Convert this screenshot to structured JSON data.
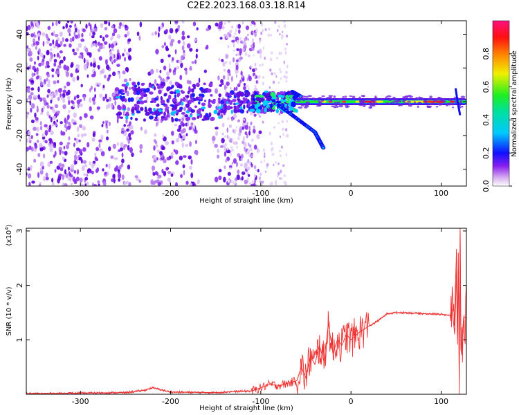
{
  "title": "C2E2.2023.168.03.18.R14",
  "colors": {
    "signal": "#ee3333",
    "frame": "#000000"
  },
  "chart_data": [
    {
      "type": "heatmap",
      "xlabel": "Height of straight line (km)",
      "ylabel": "Frequency (Hz)",
      "xlim": [
        -360,
        128
      ],
      "ylim": [
        -50,
        48
      ],
      "xticks": [
        -300,
        -200,
        -100,
        0,
        100
      ],
      "yticks": [
        -40,
        -20,
        0,
        20,
        40
      ],
      "colorbar": {
        "label": "Normalized spectral amplitude",
        "range": [
          0,
          1
        ],
        "ticks": [
          0.0,
          0.2,
          0.4,
          0.6,
          0.8
        ]
      },
      "features": {
        "noise_band_x": [
          -360,
          -120
        ],
        "central_trace_freq": 0,
        "lower_branch": [
          [
            -80,
            -2
          ],
          [
            -60,
            -10
          ],
          [
            -40,
            -18
          ],
          [
            -30,
            -28
          ]
        ],
        "upper_branch": [
          [
            -65,
            6
          ],
          [
            -55,
            3
          ]
        ]
      }
    },
    {
      "type": "line",
      "xlabel": "Height of straight line (km)",
      "ylabel": "SNR (10 * v/v)",
      "yexponent": "(x10",
      "yexponent_power": "4",
      "yexponent_close": ")",
      "xlim": [
        -360,
        128
      ],
      "ylim": [
        0,
        3.05
      ],
      "xticks": [
        -300,
        -200,
        -100,
        0,
        100
      ],
      "yticks": [
        1,
        2,
        3
      ],
      "series": [
        {
          "color": "#ee3333",
          "x": [
            -360,
            -300,
            -250,
            -230,
            -220,
            -210,
            -200,
            -150,
            -130,
            -110,
            -100,
            -90,
            -80,
            -70,
            -60,
            -55,
            -50,
            -45,
            -40,
            -35,
            -30,
            -25,
            -20,
            -15,
            -10,
            -5,
            0,
            10,
            20,
            30,
            40,
            50,
            60,
            80,
            100,
            110,
            112,
            115,
            117,
            118,
            119,
            120,
            121,
            122,
            125,
            128
          ],
          "y": [
            0.01,
            0.02,
            0.03,
            0.07,
            0.12,
            0.08,
            0.04,
            0.03,
            0.05,
            0.06,
            0.12,
            0.18,
            0.16,
            0.2,
            0.25,
            0.5,
            0.3,
            0.7,
            0.55,
            0.9,
            0.6,
            1.3,
            0.75,
            1.0,
            0.9,
            1.1,
            1.0,
            1.15,
            1.25,
            1.35,
            1.48,
            1.5,
            1.5,
            1.48,
            1.47,
            1.45,
            1.6,
            1.1,
            2.3,
            1.0,
            2.6,
            0.3,
            3.05,
            0.8,
            1.42,
            1.4
          ]
        }
      ]
    }
  ]
}
